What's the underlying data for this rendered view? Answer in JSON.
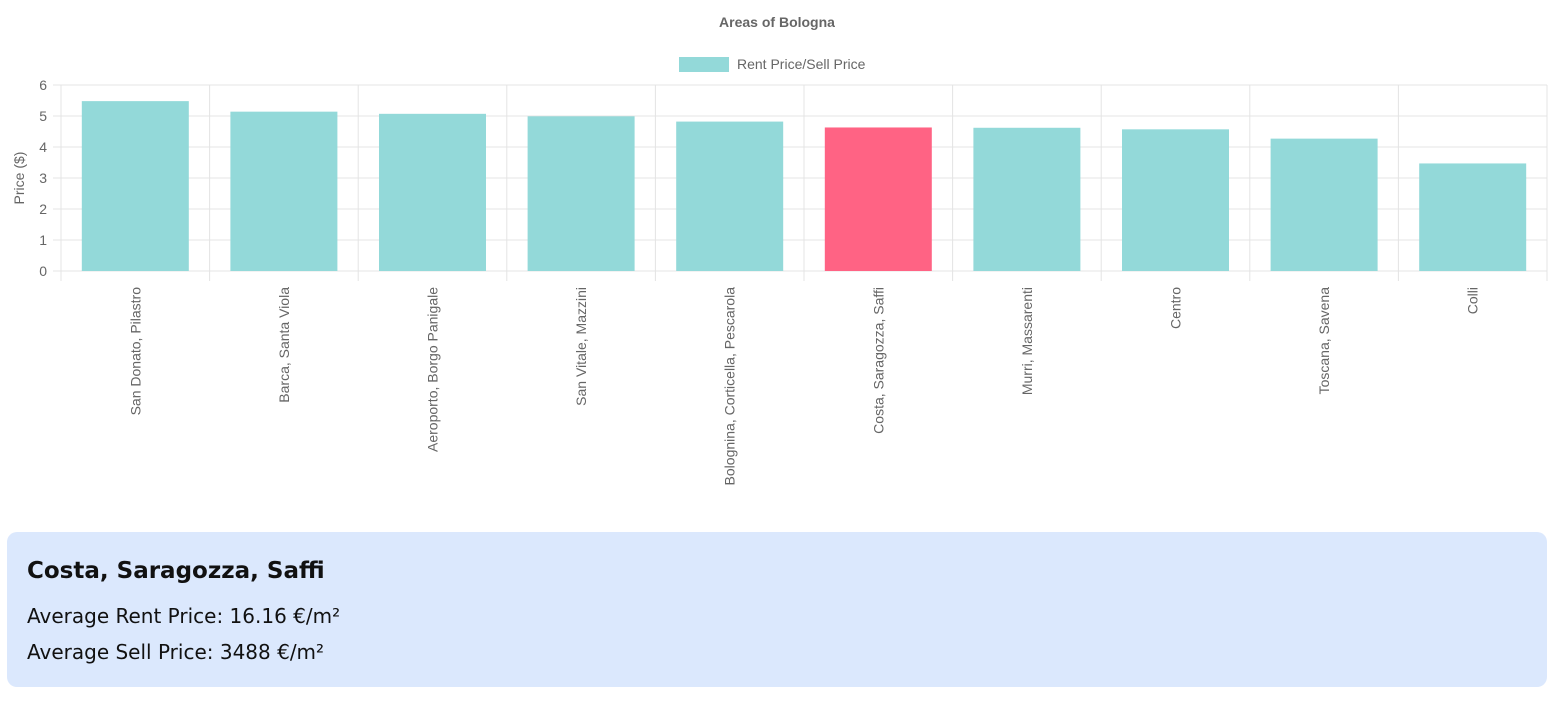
{
  "chart_data": {
    "type": "bar",
    "title": "Areas of Bologna",
    "xlabel": "",
    "ylabel": "Price ($)",
    "ylim": [
      0,
      6
    ],
    "yticks": [
      "0",
      "1",
      "2",
      "3",
      "4",
      "5",
      "6"
    ],
    "grid": true,
    "legend_position": "top-center",
    "categories": [
      "San Donato, Pilastro",
      "Barca, Santa Viola",
      "Aeroporto, Borgo Panigale",
      "San Vitale, Mazzini",
      "Bolognina, Corticella, Pescarola",
      "Costa, Saragozza, Saffi",
      "Murri, Massarenti",
      "Centro",
      "Toscana, Savena",
      "Colli"
    ],
    "series": [
      {
        "name": "Rent Price/Sell Price",
        "values": [
          5.48,
          5.14,
          5.07,
          4.99,
          4.82,
          4.63,
          4.62,
          4.57,
          4.27,
          3.47
        ],
        "color": "#93d9d9"
      }
    ],
    "highlighted_category": "Costa, Saragozza, Saffi",
    "highlight_color": "#ff6384"
  },
  "info_card": {
    "title": "Costa, Saragozza, Saffi",
    "rent_line": "Average Rent Price: 16.16 €/m²",
    "sell_line": "Average Sell Price: 3488 €/m²"
  },
  "colors": {
    "card_background": "#dbe8fd",
    "grid": "#e4e4e4",
    "text": "#666666"
  }
}
